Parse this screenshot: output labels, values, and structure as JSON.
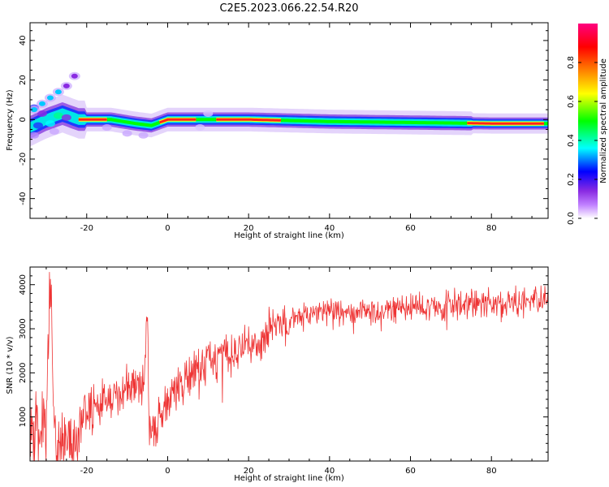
{
  "title": "C2E5.2023.066.22.54.R20",
  "chart_data": [
    {
      "type": "heatmap",
      "xlabel": "Height of straight line (km)",
      "ylabel": "Frequency (Hz)",
      "xlim": [
        -34,
        94
      ],
      "ylim": [
        -50,
        49
      ],
      "x_ticks": [
        -20,
        0,
        20,
        40,
        60,
        80
      ],
      "y_ticks": [
        -40,
        -20,
        0,
        20,
        40
      ],
      "colorbar": {
        "label": "Normalized spectral amplitude",
        "range": [
          0,
          1
        ],
        "ticks": [
          0.0,
          0.2,
          0.4,
          0.6,
          0.8
        ],
        "colormap": "gist_rainbow",
        "stops": [
          "#ffffff",
          "#8a2be2",
          "#0000ff",
          "#00ffff",
          "#00ff00",
          "#ffff00",
          "#ff8000",
          "#ff0000",
          "#ff0080"
        ]
      },
      "ridge": {
        "x": [
          -34,
          -30,
          -26,
          -22,
          -14,
          -8,
          -4,
          0,
          8,
          20,
          40,
          60,
          80,
          93
        ],
        "y": [
          -4,
          0,
          3,
          0,
          0,
          -2,
          -3,
          0,
          0,
          0,
          -1,
          -1.5,
          -2,
          -2
        ],
        "peak_segments": [
          [
            -22,
            -15
          ],
          [
            -2,
            7
          ],
          [
            12,
            28
          ],
          [
            74,
            93
          ]
        ]
      },
      "secondary_branch": {
        "x": [
          -33,
          -31,
          -29,
          -27,
          -25,
          -23
        ],
        "y": [
          5,
          8,
          11,
          14,
          17,
          22
        ]
      }
    },
    {
      "type": "line",
      "xlabel": "Height of straight line (km)",
      "ylabel": "SNR (10 * v/v)",
      "xlim": [
        -34,
        94
      ],
      "ylim": [
        0,
        4400
      ],
      "x_ticks": [
        -20,
        0,
        20,
        40,
        60,
        80
      ],
      "y_ticks": [
        1000,
        2000,
        3000,
        4000
      ],
      "color": "#ee3333",
      "series": [
        {
          "x": [
            -34,
            -32,
            -30,
            -29,
            -28,
            -26,
            -24,
            -22,
            -20,
            -18,
            -16,
            -14,
            -12,
            -10,
            -8,
            -6,
            -5,
            -4.5,
            -4,
            -2,
            0,
            2,
            4,
            6,
            8,
            10,
            12,
            14,
            16,
            18,
            20,
            22,
            24,
            26,
            28,
            30,
            32,
            35,
            38,
            40,
            45,
            50,
            55,
            60,
            65,
            70,
            75,
            80,
            85,
            90,
            94
          ],
          "values": [
            600,
            700,
            900,
            4200,
            500,
            350,
            300,
            500,
            1300,
            1200,
            1300,
            1450,
            1500,
            1700,
            1650,
            1750,
            3300,
            700,
            900,
            1000,
            1300,
            1600,
            1850,
            1900,
            2100,
            2300,
            2200,
            2500,
            2450,
            2550,
            2700,
            2750,
            2900,
            3000,
            3050,
            3150,
            3300,
            3350,
            3400,
            3450,
            3400,
            3400,
            3450,
            3500,
            3500,
            3550,
            3600,
            3600,
            3600,
            3650,
            3650
          ]
        }
      ]
    }
  ]
}
